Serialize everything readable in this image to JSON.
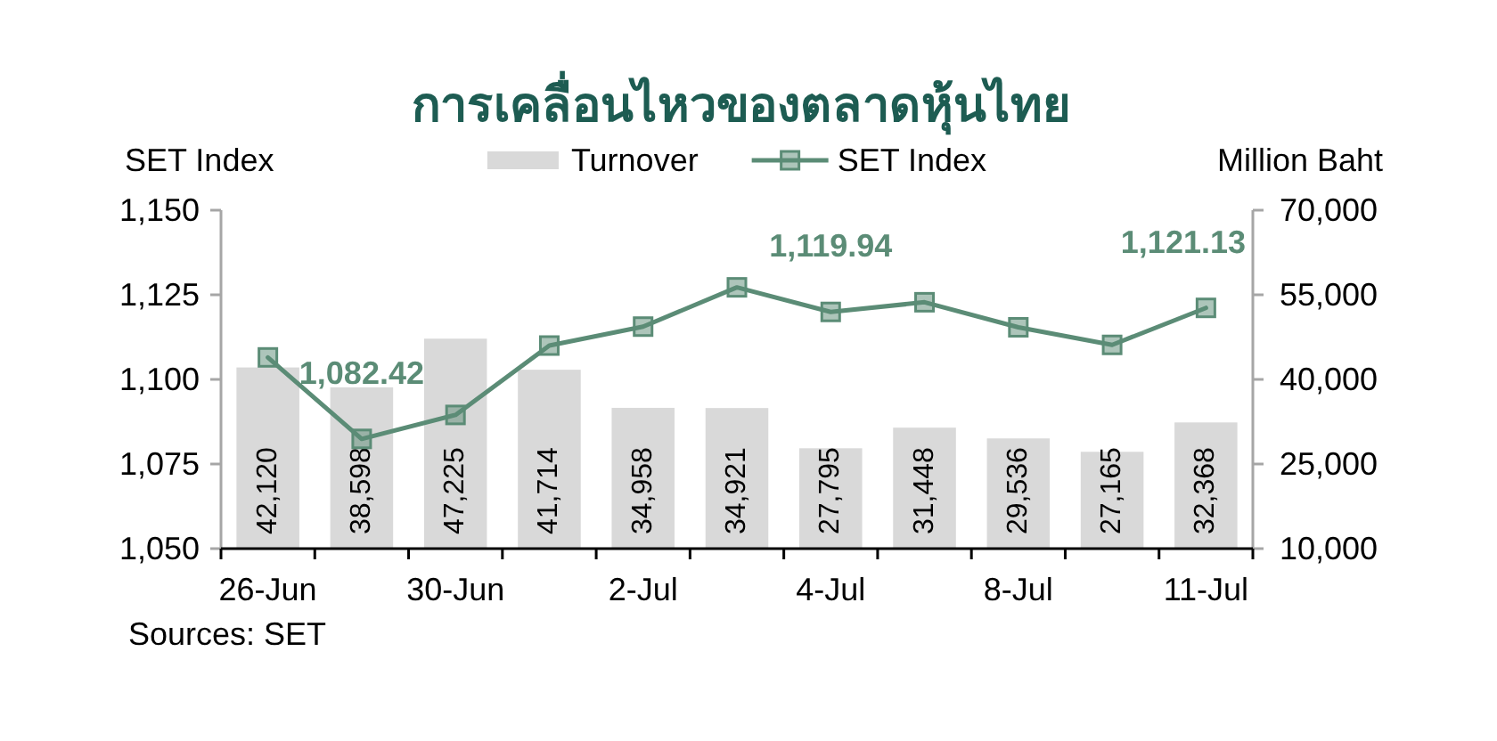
{
  "chart_data": {
    "type": "bar",
    "title": "การเคลื่อนไหวของตลาดหุ้นไทย",
    "ylabel": "SET Index",
    "y2label": "Million Baht",
    "annotations": [
      "Sources: SET"
    ],
    "categories": [
      "26-Jun",
      null,
      "30-Jun",
      null,
      "2-Jul",
      null,
      "4-Jul",
      null,
      "8-Jul",
      null,
      "11-Jul"
    ],
    "series": [
      {
        "name": "Turnover",
        "axis": "y2",
        "color": "#d9d9d9",
        "values": [
          42120,
          38598,
          47225,
          41714,
          34958,
          34921,
          27795,
          31448,
          29536,
          27165,
          32368
        ],
        "value_labels": [
          "42,120",
          "38,598",
          "47,225",
          "41,714",
          "34,958",
          "34,921",
          "27,795",
          "31,448",
          "29,536",
          "27,165",
          "32,368"
        ]
      },
      {
        "name": "SET Index",
        "type": "line",
        "axis": "y",
        "color": "#5b8c76",
        "marker": "square",
        "values": [
          1106.5,
          1082.42,
          1089.5,
          1110,
          1115.6,
          1127.2,
          1119.94,
          1122.8,
          1115.4,
          1110.2,
          1121.13
        ],
        "value_labels": [
          null,
          "1,082.42",
          null,
          null,
          null,
          null,
          "1,119.94",
          null,
          null,
          null,
          "1,121.13"
        ]
      }
    ],
    "ylim": [
      1050,
      1150
    ],
    "yticks": [
      {
        "value": 1050,
        "label": "1,050"
      },
      {
        "value": 1075,
        "label": "1,075"
      },
      {
        "value": 1100,
        "label": "1,100"
      },
      {
        "value": 1125,
        "label": "1,125"
      },
      {
        "value": 1150,
        "label": "1,150"
      }
    ],
    "y2lim": [
      10000,
      70000
    ],
    "y2ticks": [
      {
        "value": 10000,
        "label": "10,000"
      },
      {
        "value": 25000,
        "label": "25,000"
      },
      {
        "value": 40000,
        "label": "40,000"
      },
      {
        "value": 55000,
        "label": "55,000"
      },
      {
        "value": 70000,
        "label": "70,000"
      }
    ],
    "legend": "top",
    "grid": false
  }
}
